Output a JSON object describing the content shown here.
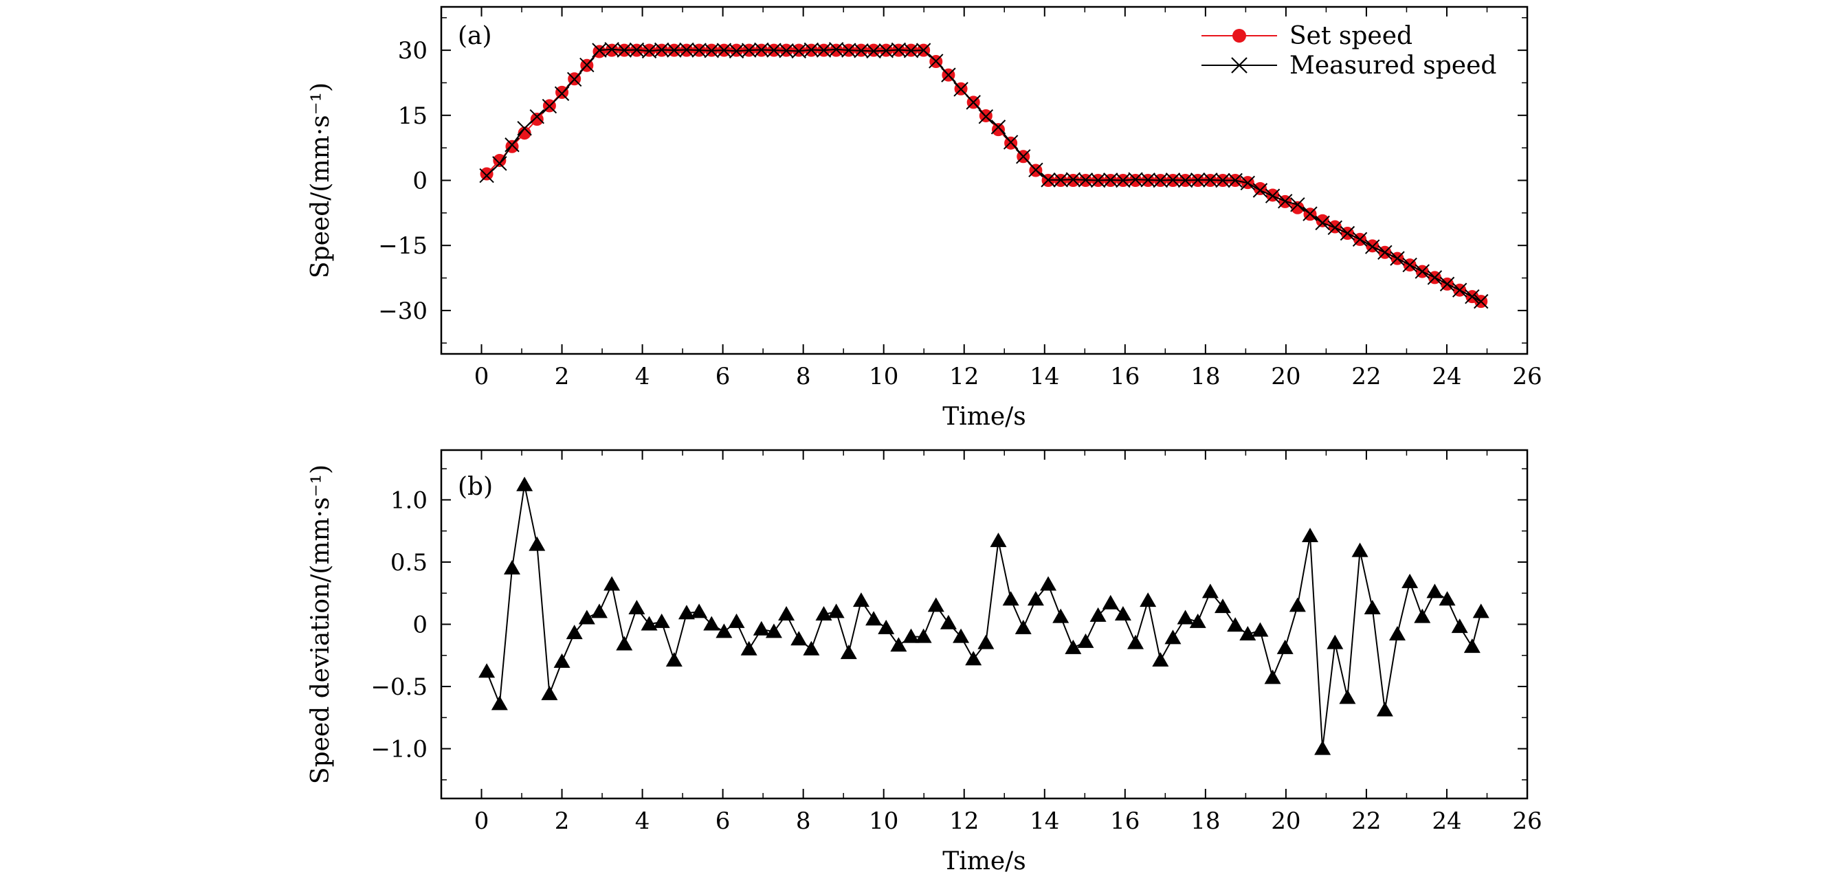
{
  "chart_data": [
    {
      "type": "line",
      "panel_label": "(a)",
      "xlabel": "Time/s",
      "ylabel": "Speed/(mm·s⁻¹)",
      "xlim": [
        -1,
        26
      ],
      "ylim": [
        -40,
        40
      ],
      "xticks": [
        0,
        2,
        4,
        6,
        8,
        10,
        12,
        14,
        16,
        18,
        20,
        22,
        24,
        26
      ],
      "yticks": [
        30,
        15,
        0,
        -15,
        -30
      ],
      "xtick_labels": [
        "0",
        "2",
        "4",
        "6",
        "8",
        "10",
        "12",
        "14",
        "16",
        "18",
        "20",
        "22",
        "24",
        "26"
      ],
      "ytick_labels": [
        "30",
        "15",
        "0",
        "−15",
        "−30"
      ],
      "legend_position": "top-right",
      "legend": [
        "Set speed",
        "Measured speed"
      ],
      "grid": false,
      "series": [
        {
          "name": "Set speed",
          "marker": "circle",
          "color": "#e8141b",
          "x": [
            0.13,
            0.45,
            0.76,
            1.07,
            1.38,
            1.69,
            2.0,
            2.31,
            2.62,
            2.93,
            3.24,
            3.55,
            3.86,
            4.17,
            4.48,
            4.79,
            5.1,
            5.41,
            5.72,
            6.03,
            6.34,
            6.65,
            6.96,
            7.27,
            7.58,
            7.89,
            8.2,
            8.51,
            8.82,
            9.13,
            9.44,
            9.75,
            10.06,
            10.37,
            10.68,
            10.99,
            11.3,
            11.61,
            11.92,
            12.23,
            12.54,
            12.85,
            13.16,
            13.47,
            13.78,
            14.09,
            14.4,
            14.71,
            15.02,
            15.33,
            15.64,
            15.95,
            16.26,
            16.57,
            16.88,
            17.19,
            17.5,
            17.81,
            18.12,
            18.43,
            18.74,
            19.05,
            19.36,
            19.67,
            19.98,
            20.29,
            20.6,
            20.91,
            21.22,
            21.53,
            21.84,
            22.15,
            22.46,
            22.77,
            23.08,
            23.39,
            23.7,
            24.01,
            24.32,
            24.63,
            24.85
          ],
          "y": [
            1.5,
            4.6,
            7.8,
            10.9,
            14.1,
            17.2,
            20.3,
            23.4,
            26.5,
            29.7,
            30,
            30,
            30,
            30,
            30,
            30,
            30,
            30,
            30,
            30,
            30,
            30,
            30,
            30,
            30,
            30,
            30,
            30,
            30,
            30,
            30,
            30,
            30,
            30,
            30,
            30,
            27.4,
            24.3,
            21.1,
            18.0,
            14.9,
            11.7,
            8.6,
            5.5,
            2.3,
            0,
            0,
            0,
            0,
            0,
            0,
            0,
            0,
            0,
            0,
            0,
            0,
            0,
            0,
            0,
            0,
            -0.5,
            -1.9,
            -3.4,
            -4.9,
            -6.3,
            -7.8,
            -9.3,
            -10.7,
            -12.2,
            -13.6,
            -15.1,
            -16.6,
            -18.0,
            -19.5,
            -21.0,
            -22.4,
            -23.9,
            -25.3,
            -26.8,
            -27.9
          ]
        },
        {
          "name": "Measured speed",
          "marker": "x",
          "color": "#000000",
          "x": [
            0.13,
            0.45,
            0.76,
            1.07,
            1.38,
            1.69,
            2.0,
            2.31,
            2.62,
            2.93,
            3.24,
            3.55,
            3.86,
            4.17,
            4.48,
            4.79,
            5.1,
            5.41,
            5.72,
            6.03,
            6.34,
            6.65,
            6.96,
            7.27,
            7.58,
            7.89,
            8.2,
            8.51,
            8.82,
            9.13,
            9.44,
            9.75,
            10.06,
            10.37,
            10.68,
            10.99,
            11.3,
            11.61,
            11.92,
            12.23,
            12.54,
            12.85,
            13.16,
            13.47,
            13.78,
            14.09,
            14.4,
            14.71,
            15.02,
            15.33,
            15.64,
            15.95,
            16.26,
            16.57,
            16.88,
            17.19,
            17.5,
            17.81,
            18.12,
            18.43,
            18.74,
            19.05,
            19.36,
            19.67,
            19.98,
            20.29,
            20.6,
            20.91,
            21.22,
            21.53,
            21.84,
            22.15,
            22.46,
            22.77,
            23.08,
            23.39,
            23.7,
            24.01,
            24.32,
            24.63,
            24.85
          ],
          "y": [
            1.1,
            3.9,
            8.2,
            12.0,
            14.7,
            17.1,
            20.0,
            23.3,
            26.6,
            30.0,
            30.2,
            30.0,
            30.1,
            29.8,
            30.1,
            30.0,
            30.1,
            30.0,
            29.9,
            30.0,
            29.8,
            30.0,
            30.1,
            30.0,
            29.9,
            29.8,
            30.1,
            30.0,
            30.2,
            30.0,
            29.9,
            29.8,
            29.9,
            30.1,
            29.9,
            30.0,
            27.5,
            24.3,
            21.0,
            18.0,
            14.7,
            12.3,
            8.8,
            5.5,
            2.4,
            0.1,
            0.1,
            0.2,
            0.1,
            0,
            0.1,
            0,
            0.2,
            0.1,
            0,
            0.1,
            0,
            0.1,
            0.1,
            0,
            0,
            -0.6,
            -2.3,
            -3.6,
            -4.8,
            -5.6,
            -7.7,
            -9.8,
            -10.9,
            -12.2,
            -13.6,
            -15.3,
            -16.6,
            -18.0,
            -19.5,
            -21.0,
            -22.4,
            -23.9,
            -25.3,
            -26.8,
            -27.9
          ]
        }
      ]
    },
    {
      "type": "line",
      "panel_label": "(b)",
      "xlabel": "Time/s",
      "ylabel": "Speed deviation/(mm·s⁻¹)",
      "xlim": [
        -1,
        26
      ],
      "ylim": [
        -1.4,
        1.4
      ],
      "xticks": [
        0,
        2,
        4,
        6,
        8,
        10,
        12,
        14,
        16,
        18,
        20,
        22,
        24,
        26
      ],
      "yticks": [
        1.0,
        0.5,
        0,
        -0.5,
        -1.0
      ],
      "xtick_labels": [
        "0",
        "2",
        "4",
        "6",
        "8",
        "10",
        "12",
        "14",
        "16",
        "18",
        "20",
        "22",
        "24",
        "26"
      ],
      "ytick_labels": [
        "1.0",
        "0.5",
        "0",
        "−0.5",
        "−1.0"
      ],
      "grid": false,
      "series": [
        {
          "name": "Speed deviation",
          "marker": "triangle",
          "color": "#000000",
          "x": [
            0.13,
            0.45,
            0.76,
            1.07,
            1.38,
            1.69,
            2.0,
            2.31,
            2.62,
            2.93,
            3.24,
            3.55,
            3.86,
            4.17,
            4.48,
            4.79,
            5.1,
            5.41,
            5.72,
            6.03,
            6.34,
            6.65,
            6.96,
            7.27,
            7.58,
            7.89,
            8.2,
            8.51,
            8.82,
            9.13,
            9.44,
            9.75,
            10.06,
            10.37,
            10.68,
            10.99,
            11.3,
            11.61,
            11.92,
            12.23,
            12.54,
            12.85,
            13.16,
            13.47,
            13.78,
            14.09,
            14.4,
            14.71,
            15.02,
            15.33,
            15.64,
            15.95,
            16.26,
            16.57,
            16.88,
            17.19,
            17.5,
            17.81,
            18.12,
            18.43,
            18.74,
            19.05,
            19.36,
            19.67,
            19.98,
            20.29,
            20.6,
            20.91,
            21.22,
            21.53,
            21.84,
            22.15,
            22.46,
            22.77,
            23.08,
            23.39,
            23.7,
            24.01,
            24.32,
            24.63,
            24.85
          ],
          "y": [
            -0.38,
            -0.64,
            0.45,
            1.12,
            0.64,
            -0.56,
            -0.3,
            -0.07,
            0.05,
            0.1,
            0.32,
            -0.16,
            0.13,
            0.0,
            0.02,
            -0.29,
            0.09,
            0.1,
            0.0,
            -0.06,
            0.02,
            -0.2,
            -0.04,
            -0.06,
            0.08,
            -0.12,
            -0.2,
            0.08,
            0.1,
            -0.23,
            0.19,
            0.04,
            -0.03,
            -0.17,
            -0.1,
            -0.1,
            0.15,
            0.01,
            -0.1,
            -0.28,
            -0.15,
            0.67,
            0.2,
            -0.03,
            0.2,
            0.32,
            0.06,
            -0.19,
            -0.14,
            0.07,
            0.17,
            0.08,
            -0.15,
            0.19,
            -0.29,
            -0.11,
            0.05,
            0.02,
            0.26,
            0.14,
            -0.01,
            -0.08,
            -0.05,
            -0.43,
            -0.19,
            0.15,
            0.71,
            -1.0,
            -0.15,
            -0.59,
            0.59,
            0.13,
            -0.69,
            -0.08,
            0.34,
            0.06,
            0.26,
            0.2,
            -0.02,
            -0.18,
            0.1
          ]
        }
      ]
    }
  ]
}
